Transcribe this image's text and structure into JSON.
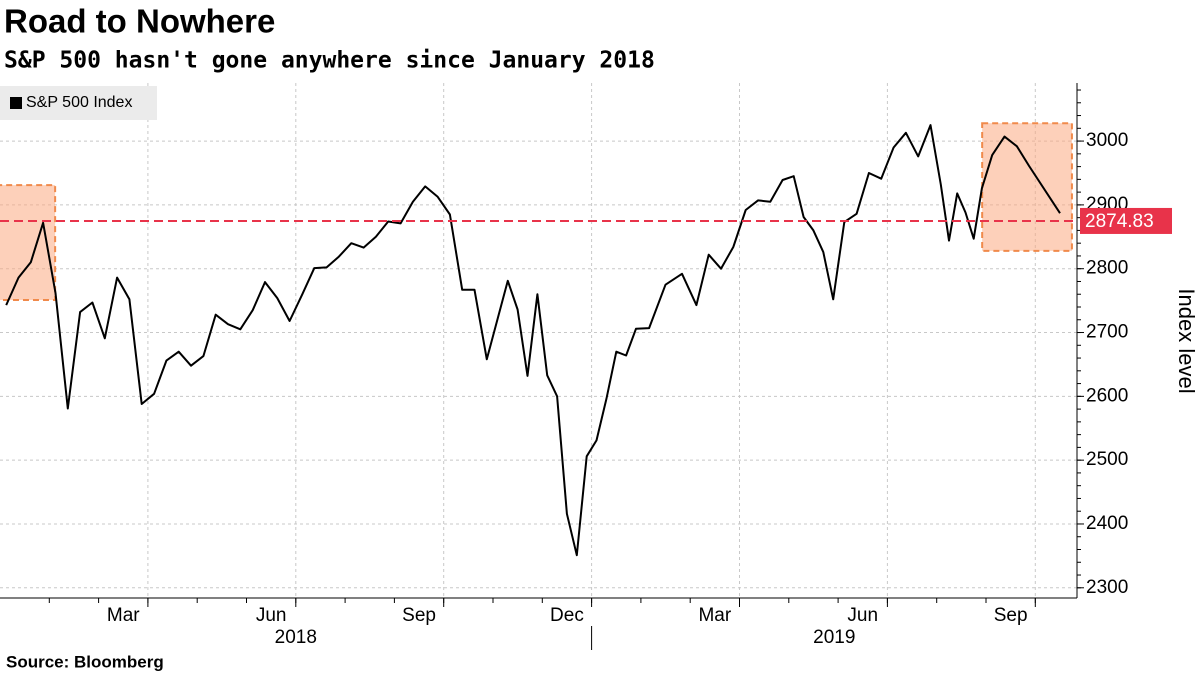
{
  "chart_data": {
    "type": "line",
    "title": "Road to Nowhere",
    "subtitle": "S&P 500 hasn't gone anywhere since January 2018",
    "source": "Source: Bloomberg",
    "y_axis_label": "Index level",
    "x": [
      "2018-01",
      "2018-01",
      "2018-01",
      "2018-01",
      "2018-02",
      "2018-02",
      "2018-02",
      "2018-02",
      "2018-03",
      "2018-03",
      "2018-03",
      "2018-03",
      "2018-04",
      "2018-04",
      "2018-04",
      "2018-04",
      "2018-05",
      "2018-05",
      "2018-05",
      "2018-05",
      "2018-06",
      "2018-06",
      "2018-06",
      "2018-06",
      "2018-07",
      "2018-07",
      "2018-07",
      "2018-07",
      "2018-08",
      "2018-08",
      "2018-08",
      "2018-08",
      "2018-09",
      "2018-09",
      "2018-09",
      "2018-09",
      "2018-10",
      "2018-10",
      "2018-10",
      "2018-10",
      "2018-11",
      "2018-11",
      "2018-11",
      "2018-11",
      "2018-11",
      "2018-12",
      "2018-12",
      "2018-12",
      "2018-12",
      "2018-12",
      "2019-01",
      "2019-01",
      "2019-01",
      "2019-01",
      "2019-01",
      "2019-02",
      "2019-02",
      "2019-02",
      "2019-03",
      "2019-03",
      "2019-03",
      "2019-03",
      "2019-04",
      "2019-04",
      "2019-04",
      "2019-04",
      "2019-05",
      "2019-05",
      "2019-05",
      "2019-05",
      "2019-05",
      "2019-06",
      "2019-06",
      "2019-06",
      "2019-06",
      "2019-07",
      "2019-07",
      "2019-07",
      "2019-07",
      "2019-08",
      "2019-08",
      "2019-08",
      "2019-08",
      "2019-08",
      "2019-08",
      "2019-09",
      "2019-09",
      "2019-09",
      "2019-09",
      "2019-10"
    ],
    "series": [
      {
        "name": "S&P 500 Index",
        "color": "#000000",
        "values": [
          2743,
          2786,
          2810,
          2872,
          2762,
          2581,
          2732,
          2747,
          2691,
          2786,
          2752,
          2588,
          2604,
          2656,
          2670,
          2648,
          2663,
          2728,
          2713,
          2705,
          2735,
          2779,
          2754,
          2718,
          2759,
          2801,
          2802,
          2819,
          2840,
          2833,
          2850,
          2874,
          2871,
          2905,
          2929,
          2913,
          2885,
          2767,
          2767,
          2658,
          2723,
          2781,
          2736,
          2632,
          2760,
          2633,
          2600,
          2416,
          2351,
          2506,
          2531,
          2596,
          2670,
          2664,
          2706,
          2707,
          2775,
          2792,
          2743,
          2822,
          2800,
          2834,
          2892,
          2907,
          2905,
          2939,
          2945,
          2881,
          2860,
          2826,
          2752,
          2873,
          2886,
          2950,
          2941,
          2990,
          3013,
          2976,
          3025,
          2932,
          2844,
          2918,
          2888,
          2847,
          2926,
          2978,
          3007,
          2992,
          2961,
          2887
        ]
      }
    ],
    "ylim": [
      2284,
      3091
    ],
    "yticks": [
      2300,
      2400,
      2500,
      2600,
      2700,
      2800,
      2900,
      3000
    ],
    "xticks": [
      {
        "value": "2018-03",
        "label": "Mar"
      },
      {
        "value": "2018-06",
        "label": "Jun"
      },
      {
        "value": "2018-09",
        "label": "Sep"
      },
      {
        "value": "2018-12",
        "label": "Dec"
      },
      {
        "value": "2019-03",
        "label": "Mar"
      },
      {
        "value": "2019-06",
        "label": "Jun"
      },
      {
        "value": "2019-09",
        "label": "Sep"
      }
    ],
    "x_years": [
      "2018",
      "2019"
    ],
    "reference_line": {
      "value": 2874.83,
      "color": "#e8334a"
    },
    "highlights": [
      {
        "x": [
          "2018-01",
          "2018-01"
        ],
        "y": [
          2751,
          2931
        ]
      },
      {
        "x": [
          "2019-09",
          "2019-10"
        ],
        "y": [
          2828,
          3028
        ]
      }
    ],
    "grid": true,
    "legend": "top-left"
  }
}
